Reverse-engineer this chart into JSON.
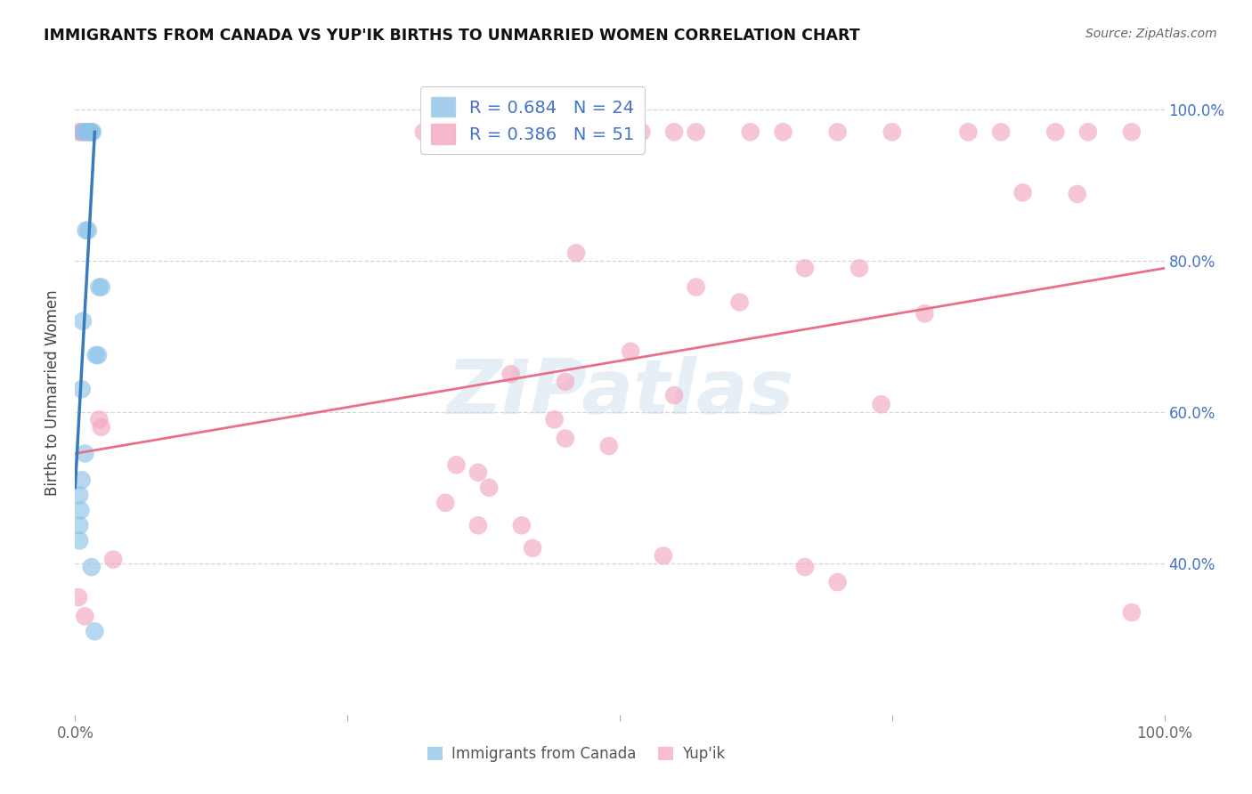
{
  "title": "IMMIGRANTS FROM CANADA VS YUP'IK BIRTHS TO UNMARRIED WOMEN CORRELATION CHART",
  "source": "Source: ZipAtlas.com",
  "ylabel": "Births to Unmarried Women",
  "watermark_text": "ZIPatlas",
  "blue_label": "Immigrants from Canada",
  "pink_label": "Yup'ik",
  "blue_r": "R = 0.684",
  "blue_n": "N = 24",
  "pink_r": "R = 0.386",
  "pink_n": "N = 51",
  "blue_color": "#8ec4e8",
  "pink_color": "#f4a8c0",
  "blue_line_color": "#3a7bbf",
  "pink_line_color": "#e8708a",
  "background_color": "#ffffff",
  "grid_color": "#cccccc",
  "blue_dots": [
    [
      0.007,
      0.97
    ],
    [
      0.01,
      0.97
    ],
    [
      0.012,
      0.97
    ],
    [
      0.013,
      0.97
    ],
    [
      0.014,
      0.97
    ],
    [
      0.015,
      0.97
    ],
    [
      0.016,
      0.97
    ],
    [
      0.01,
      0.84
    ],
    [
      0.012,
      0.84
    ],
    [
      0.022,
      0.765
    ],
    [
      0.024,
      0.765
    ],
    [
      0.007,
      0.72
    ],
    [
      0.019,
      0.675
    ],
    [
      0.021,
      0.675
    ],
    [
      0.006,
      0.63
    ],
    [
      0.009,
      0.545
    ],
    [
      0.006,
      0.51
    ],
    [
      0.004,
      0.49
    ],
    [
      0.005,
      0.47
    ],
    [
      0.004,
      0.45
    ],
    [
      0.004,
      0.43
    ],
    [
      0.015,
      0.395
    ],
    [
      0.018,
      0.31
    ]
  ],
  "pink_dots": [
    [
      0.003,
      0.97
    ],
    [
      0.006,
      0.97
    ],
    [
      0.008,
      0.97
    ],
    [
      0.32,
      0.97
    ],
    [
      0.44,
      0.97
    ],
    [
      0.5,
      0.97
    ],
    [
      0.52,
      0.97
    ],
    [
      0.55,
      0.97
    ],
    [
      0.57,
      0.97
    ],
    [
      0.62,
      0.97
    ],
    [
      0.65,
      0.97
    ],
    [
      0.7,
      0.97
    ],
    [
      0.75,
      0.97
    ],
    [
      0.82,
      0.97
    ],
    [
      0.85,
      0.97
    ],
    [
      0.9,
      0.97
    ],
    [
      0.93,
      0.97
    ],
    [
      0.97,
      0.97
    ],
    [
      0.87,
      0.89
    ],
    [
      0.92,
      0.888
    ],
    [
      0.46,
      0.81
    ],
    [
      0.67,
      0.79
    ],
    [
      0.72,
      0.79
    ],
    [
      0.57,
      0.765
    ],
    [
      0.61,
      0.745
    ],
    [
      0.78,
      0.73
    ],
    [
      0.51,
      0.68
    ],
    [
      0.4,
      0.65
    ],
    [
      0.45,
      0.64
    ],
    [
      0.55,
      0.622
    ],
    [
      0.74,
      0.61
    ],
    [
      0.44,
      0.59
    ],
    [
      0.45,
      0.565
    ],
    [
      0.49,
      0.555
    ],
    [
      0.35,
      0.53
    ],
    [
      0.37,
      0.52
    ],
    [
      0.38,
      0.5
    ],
    [
      0.34,
      0.48
    ],
    [
      0.37,
      0.45
    ],
    [
      0.41,
      0.45
    ],
    [
      0.42,
      0.42
    ],
    [
      0.54,
      0.41
    ],
    [
      0.67,
      0.395
    ],
    [
      0.7,
      0.375
    ],
    [
      0.022,
      0.59
    ],
    [
      0.024,
      0.58
    ],
    [
      0.035,
      0.405
    ],
    [
      0.003,
      0.355
    ],
    [
      0.009,
      0.33
    ],
    [
      0.97,
      0.335
    ]
  ],
  "xlim": [
    0.0,
    1.0
  ],
  "ylim": [
    0.2,
    1.05
  ],
  "yticks": [
    0.4,
    0.6,
    0.8,
    1.0
  ],
  "ytick_labels": [
    "40.0%",
    "60.0%",
    "80.0%",
    "100.0%"
  ],
  "xticks": [
    0.0,
    0.25,
    0.5,
    0.75,
    1.0
  ],
  "xtick_labels": [
    "0.0%",
    "",
    "",
    "",
    "100.0%"
  ],
  "blue_trendline_x": [
    0.0,
    0.018
  ],
  "blue_trendline_y": [
    0.5,
    0.97
  ],
  "pink_trendline_x": [
    0.0,
    1.0
  ],
  "pink_trendline_y": [
    0.545,
    0.79
  ]
}
